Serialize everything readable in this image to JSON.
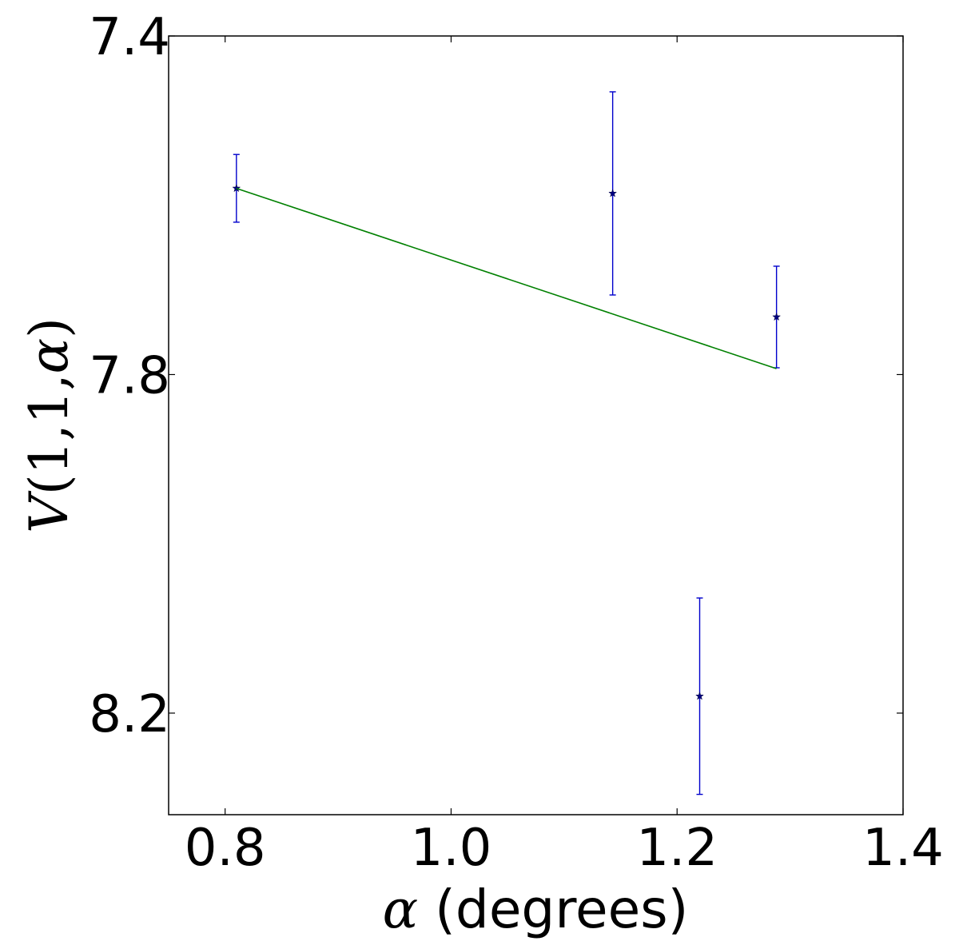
{
  "chart_data": {
    "type": "scatter",
    "xlabel_symbol": "α",
    "xlabel_text": " (degrees)",
    "ylabel_parts": [
      "V",
      "(1,1,",
      "α",
      ")"
    ],
    "xlim": [
      0.75,
      1.4
    ],
    "ylim": [
      8.32,
      7.4
    ],
    "y_inverted": true,
    "grid": false,
    "x_ticks": [
      0.8,
      1.0,
      1.2,
      1.4
    ],
    "x_tick_labels": [
      "0.8",
      "1.0",
      "1.2",
      "1.4"
    ],
    "y_ticks": [
      7.4,
      7.8,
      8.2
    ],
    "y_tick_labels": [
      "7.4",
      "7.8",
      "8.2"
    ],
    "series": [
      {
        "type": "errorbar",
        "color": "#0000cc",
        "marker": "star",
        "points": [
          {
            "x": 0.81,
            "y": 7.58,
            "err": 0.04
          },
          {
            "x": 1.143,
            "y": 7.586,
            "err": 0.12
          },
          {
            "x": 1.22,
            "y": 8.18,
            "err": 0.116
          },
          {
            "x": 1.288,
            "y": 7.732,
            "err": 0.06
          }
        ]
      },
      {
        "type": "line",
        "color": "#008000",
        "points": [
          {
            "x": 0.81,
            "y": 7.58
          },
          {
            "x": 1.288,
            "y": 7.793
          }
        ]
      }
    ]
  }
}
